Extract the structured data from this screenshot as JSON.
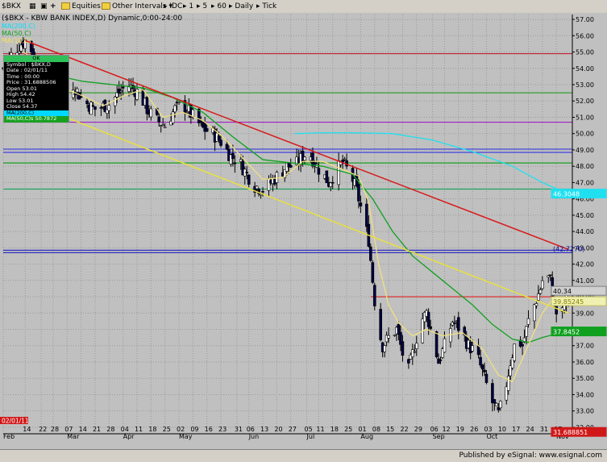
{
  "toolbar": {
    "symbol": "$BKX",
    "equities": "Equities",
    "intervals": "Other Intervals",
    "source": "IDC",
    "int1": "1",
    "int5": "5",
    "int60": "60",
    "daily": "Daily",
    "tick": "Tick"
  },
  "chart_title": "($BKX - KBW BANK INDEX,D) Dynamic,0:00-24:00",
  "legend": {
    "ma200": "MA(200,C)",
    "ma50": "MA(50,C)",
    "ma10": "MA(10,C)",
    "ma_other": "MA(10)"
  },
  "info_box": {
    "header": "OK",
    "symbol": "Symbol : $BKX,D",
    "date": "Date : 02/01/11",
    "time": "Time : 00:00",
    "price": "Price : 31.6888506",
    "open": "Open 53.01",
    "high": "High 54.42",
    "low": "Low 53.01",
    "close": "Close 54.37",
    "ma200": "MA(200,C)",
    "ma50": "MA(50,C)s 50.7872"
  },
  "footer_text": "Published by eSignal: www.esignal.com",
  "cursor_date": "02/01/11",
  "chart_data": {
    "type": "candlestick",
    "title": "($BKX - KBW BANK INDEX,D) Dynamic,0:00-24:00",
    "ylim": [
      31.6,
      57.3
    ],
    "y_ticks": [
      "57.00",
      "56.00",
      "55.00",
      "54.00",
      "53.00",
      "52.00",
      "51.00",
      "50.00",
      "49.00",
      "48.00",
      "47.00",
      "46.00",
      "45.00",
      "44.00",
      "43.00",
      "42.00",
      "41.00",
      "40.00",
      "39.00",
      "38.00",
      "37.00",
      "36.00",
      "35.00",
      "34.00",
      "33.00",
      "32.00"
    ],
    "x_ticks": [
      {
        "label": "Feb",
        "d": 0
      },
      {
        "label": "14",
        "d": 11
      },
      {
        "label": "22",
        "d": 19
      },
      {
        "label": "28",
        "d": 25
      },
      {
        "label": "07",
        "d": 32
      },
      {
        "label": "Mar",
        "d": 32
      },
      {
        "label": "14",
        "d": 39
      },
      {
        "label": "21",
        "d": 46
      },
      {
        "label": "28",
        "d": 53
      },
      {
        "label": "04",
        "d": 60
      },
      {
        "label": "Apr",
        "d": 60
      },
      {
        "label": "11",
        "d": 67
      },
      {
        "label": "18",
        "d": 74
      },
      {
        "label": "25",
        "d": 81
      },
      {
        "label": "02",
        "d": 88
      },
      {
        "label": "May",
        "d": 88
      },
      {
        "label": "09",
        "d": 95
      },
      {
        "label": "16",
        "d": 102
      },
      {
        "label": "23",
        "d": 109
      },
      {
        "label": "31",
        "d": 117
      },
      {
        "label": "06",
        "d": 123
      },
      {
        "label": "Jun",
        "d": 123
      },
      {
        "label": "13",
        "d": 130
      },
      {
        "label": "20",
        "d": 137
      },
      {
        "label": "27",
        "d": 144
      },
      {
        "label": "05",
        "d": 152
      },
      {
        "label": "Jul",
        "d": 152
      },
      {
        "label": "11",
        "d": 158
      },
      {
        "label": "18",
        "d": 165
      },
      {
        "label": "25",
        "d": 172
      },
      {
        "label": "01",
        "d": 179
      },
      {
        "label": "Aug",
        "d": 179
      },
      {
        "label": "08",
        "d": 186
      },
      {
        "label": "15",
        "d": 193
      },
      {
        "label": "22",
        "d": 200
      },
      {
        "label": "29",
        "d": 207
      },
      {
        "label": "06",
        "d": 215
      },
      {
        "label": "Sep",
        "d": 215
      },
      {
        "label": "12",
        "d": 221
      },
      {
        "label": "19",
        "d": 228
      },
      {
        "label": "26",
        "d": 235
      },
      {
        "label": "03",
        "d": 242
      },
      {
        "label": "Oct",
        "d": 242
      },
      {
        "label": "10",
        "d": 249
      },
      {
        "label": "17",
        "d": 256
      },
      {
        "label": "24",
        "d": 263
      },
      {
        "label": "31",
        "d": 270
      },
      {
        "label": "07",
        "d": 277
      },
      {
        "label": "Nov",
        "d": 277
      }
    ],
    "anchors": [
      [
        0,
        54.0
      ],
      [
        5,
        55.0
      ],
      [
        9,
        55.5
      ],
      [
        12,
        55.8
      ],
      [
        16,
        54.5
      ],
      [
        20,
        53.0
      ],
      [
        25,
        52.0
      ],
      [
        30,
        51.5
      ],
      [
        35,
        53.0
      ],
      [
        40,
        52.0
      ],
      [
        46,
        51.5
      ],
      [
        53,
        51.8
      ],
      [
        58,
        52.5
      ],
      [
        62,
        53.0
      ],
      [
        68,
        52.5
      ],
      [
        72,
        51.5
      ],
      [
        77,
        50.8
      ],
      [
        81,
        50.5
      ],
      [
        86,
        51.5
      ],
      [
        90,
        51.8
      ],
      [
        94,
        51.2
      ],
      [
        100,
        50.3
      ],
      [
        105,
        50.0
      ],
      [
        109,
        49.5
      ],
      [
        114,
        48.6
      ],
      [
        118,
        48.3
      ],
      [
        122,
        47.5
      ],
      [
        126,
        46.8
      ],
      [
        130,
        46.6
      ],
      [
        134,
        47.0
      ],
      [
        138,
        47.5
      ],
      [
        142,
        48.0
      ],
      [
        146,
        48.0
      ],
      [
        150,
        48.6
      ],
      [
        153,
        48.9
      ],
      [
        157,
        48.0
      ],
      [
        160,
        47.5
      ],
      [
        163,
        47.0
      ],
      [
        167,
        47.8
      ],
      [
        170,
        48.2
      ],
      [
        174,
        47.5
      ],
      [
        177,
        46.5
      ],
      [
        181,
        44.5
      ],
      [
        183,
        43.5
      ],
      [
        185,
        41.0
      ],
      [
        187,
        38.5
      ],
      [
        190,
        37.0
      ],
      [
        193,
        37.5
      ],
      [
        197,
        38.0
      ],
      [
        200,
        36.5
      ],
      [
        203,
        35.5
      ],
      [
        206,
        37.0
      ],
      [
        209,
        38.5
      ],
      [
        212,
        39.0
      ],
      [
        215,
        37.5
      ],
      [
        218,
        36.0
      ],
      [
        221,
        37.0
      ],
      [
        225,
        38.5
      ],
      [
        229,
        38.0
      ],
      [
        233,
        37.0
      ],
      [
        237,
        36.5
      ],
      [
        241,
        35.0
      ],
      [
        245,
        33.5
      ],
      [
        248,
        32.8
      ],
      [
        251,
        34.0
      ],
      [
        254,
        36.0
      ],
      [
        257,
        37.5
      ],
      [
        260,
        37.0
      ],
      [
        263,
        38.5
      ],
      [
        266,
        39.5
      ],
      [
        269,
        40.5
      ],
      [
        271,
        41.5
      ],
      [
        274,
        41.0
      ],
      [
        277,
        39.0
      ],
      [
        279,
        38.5
      ],
      [
        281,
        39.5
      ],
      [
        283,
        40.0
      ]
    ],
    "series": [
      {
        "name": "MA(200,C)",
        "values": [
          [
            146,
            50.0
          ],
          [
            160,
            50.05
          ],
          [
            175,
            50.05
          ],
          [
            195,
            50.0
          ],
          [
            215,
            49.6
          ],
          [
            235,
            48.9
          ],
          [
            255,
            48.0
          ],
          [
            270,
            47.0
          ],
          [
            283,
            46.3
          ]
        ]
      },
      {
        "name": "MA(50,C)",
        "values": [
          [
            12,
            54.5
          ],
          [
            25,
            53.6
          ],
          [
            40,
            53.2
          ],
          [
            55,
            53.0
          ],
          [
            70,
            52.8
          ],
          [
            85,
            52.2
          ],
          [
            100,
            51.3
          ],
          [
            115,
            49.8
          ],
          [
            130,
            48.4
          ],
          [
            145,
            48.2
          ],
          [
            160,
            48.0
          ],
          [
            175,
            47.5
          ],
          [
            185,
            46.0
          ],
          [
            195,
            44.0
          ],
          [
            205,
            42.5
          ],
          [
            215,
            41.5
          ],
          [
            225,
            40.5
          ],
          [
            235,
            39.5
          ],
          [
            245,
            38.3
          ],
          [
            255,
            37.4
          ],
          [
            263,
            37.2
          ],
          [
            270,
            37.5
          ],
          [
            276,
            37.7
          ],
          [
            283,
            37.9
          ]
        ]
      },
      {
        "name": "MA(10,C)",
        "values": [
          [
            10,
            55.0
          ],
          [
            20,
            54.2
          ],
          [
            30,
            52.8
          ],
          [
            40,
            52.3
          ],
          [
            50,
            51.7
          ],
          [
            60,
            52.3
          ],
          [
            70,
            52.7
          ],
          [
            80,
            51.0
          ],
          [
            90,
            51.3
          ],
          [
            100,
            50.8
          ],
          [
            110,
            49.8
          ],
          [
            120,
            48.5
          ],
          [
            130,
            47.2
          ],
          [
            140,
            47.3
          ],
          [
            150,
            48.3
          ],
          [
            160,
            48.3
          ],
          [
            170,
            47.8
          ],
          [
            178,
            47.4
          ],
          [
            183,
            45.8
          ],
          [
            188,
            42.0
          ],
          [
            193,
            39.5
          ],
          [
            198,
            38.4
          ],
          [
            205,
            37.6
          ],
          [
            212,
            38.0
          ],
          [
            220,
            37.6
          ],
          [
            230,
            37.8
          ],
          [
            240,
            36.8
          ],
          [
            248,
            35.2
          ],
          [
            255,
            34.8
          ],
          [
            260,
            36.2
          ],
          [
            265,
            37.6
          ],
          [
            270,
            39.0
          ],
          [
            276,
            40.0
          ],
          [
            280,
            39.6
          ],
          [
            283,
            39.6
          ]
        ]
      }
    ],
    "trendlines": [
      {
        "color": "#d81818",
        "from": [
          11,
          55.7
        ],
        "to": [
          283,
          42.9
        ]
      },
      {
        "color": "#e8e040",
        "from": [
          4,
          52.3
        ],
        "to": [
          283,
          39.0
        ]
      }
    ],
    "hlines": [
      {
        "y": 54.9,
        "color": "#c02030",
        "d0": 0
      },
      {
        "y": 52.5,
        "color": "#30a030",
        "d0": 0
      },
      {
        "y": 50.7,
        "color": "#a020c0",
        "d0": 0
      },
      {
        "y": 49.05,
        "color": "#4040e0",
        "d0": 0
      },
      {
        "y": 48.85,
        "color": "#4040e0",
        "d0": 0
      },
      {
        "y": 48.2,
        "color": "#18a020",
        "d0": 0
      },
      {
        "y": 46.6,
        "color": "#20a060",
        "d0": 0
      },
      {
        "y": 42.85,
        "color": "#3030c0",
        "d0": 0
      },
      {
        "y": 42.7,
        "color": "#3030c0",
        "d0": 0
      },
      {
        "y": 40.0,
        "color": "#e02020",
        "d0": 184
      }
    ],
    "price_labels": [
      {
        "text": "(42.7270)",
        "y": 42.95,
        "type": "paren"
      },
      {
        "text": "46.3048",
        "y": 46.3,
        "type": "cyan"
      },
      {
        "text": "40.34",
        "y": 40.34,
        "type": "gray"
      },
      {
        "text": "39.85245",
        "y": 39.7,
        "type": "yellow"
      },
      {
        "text": "37.8452",
        "y": 37.85,
        "type": "green"
      },
      {
        "text": "31.688851",
        "y": 31.69,
        "type": "red"
      }
    ],
    "legend_placement": "top-left",
    "grid": true
  }
}
